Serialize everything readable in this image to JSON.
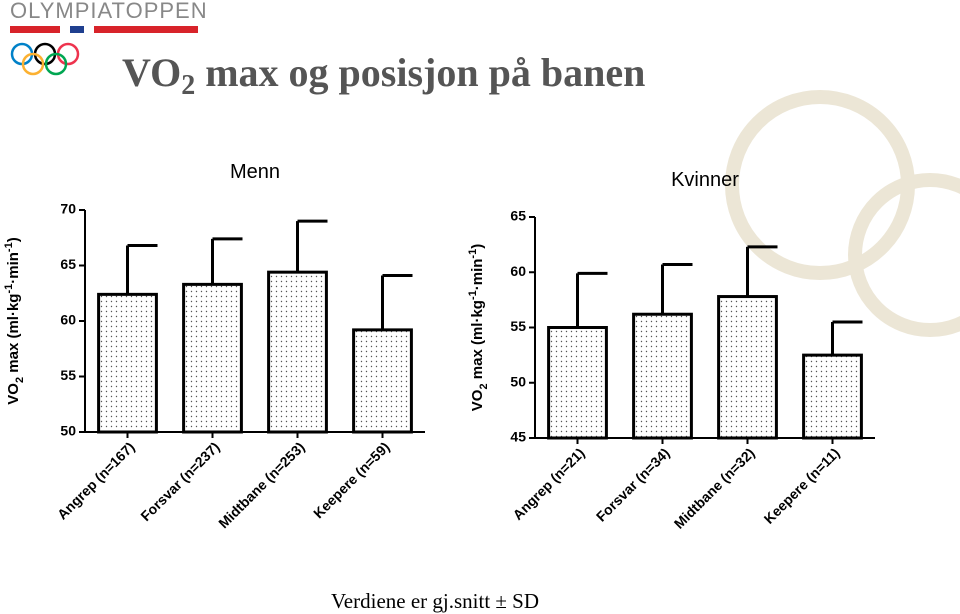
{
  "slide": {
    "logo": "OLYMPIATOPPEN",
    "title": [
      "VO",
      "2",
      " max og posisjon på banen"
    ],
    "footnote": "Verdiene er gj.snitt ± SD"
  },
  "chart_data": [
    {
      "type": "bar",
      "title": "Menn",
      "y_label": [
        "VO",
        "2",
        " max (ml·kg",
        "-1",
        "·min",
        "-1",
        ")"
      ],
      "categories": [
        "Angrep (n=167)",
        "Forsvar (n=237)",
        "Midtbane (n=253)",
        "Keepere (n=59)"
      ],
      "values": [
        62.4,
        63.3,
        64.4,
        59.2
      ],
      "errors": [
        4.4,
        4.1,
        4.6,
        4.9
      ],
      "ylim": [
        50,
        70
      ],
      "yticks": [
        50,
        55,
        60,
        65,
        70
      ]
    },
    {
      "type": "bar",
      "title": "Kvinner",
      "y_label": [
        "VO",
        "2",
        " max (ml·kg",
        "-1",
        "·min",
        "-1",
        ")"
      ],
      "categories": [
        "Angrep (n=21)",
        "Forsvar (n=34)",
        "Midtbane (n=32)",
        "Keepere (n=11)"
      ],
      "values": [
        55.0,
        56.2,
        57.8,
        52.5
      ],
      "errors": [
        4.9,
        4.5,
        4.5,
        3.0
      ],
      "ylim": [
        45,
        65
      ],
      "yticks": [
        45,
        50,
        55,
        60,
        65
      ]
    }
  ]
}
